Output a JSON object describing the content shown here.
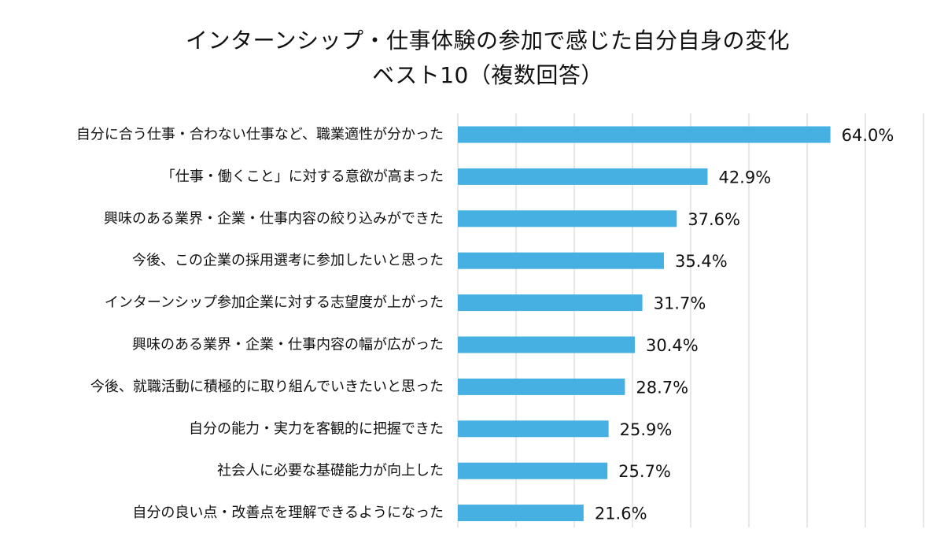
{
  "chart_data": {
    "type": "bar",
    "orientation": "horizontal",
    "title": "インターンシップ・仕事体験の参加で感じた自分自身の変化",
    "subtitle": "ベスト10（複数回答）",
    "categories": [
      "自分に合う仕事・合わない仕事など、職業適性が分かった",
      "「仕事・働くこと」に対する意欲が高まった",
      "興味のある業界・企業・仕事内容の絞り込みができた",
      "今後、この企業の採用選考に参加したいと思った",
      "インターンシップ参加企業に対する志望度が上がった",
      "興味のある業界・企業・仕事内容の幅が広がった",
      "今後、就職活動に積極的に取り組んでいきたいと思った",
      "自分の能力・実力を客観的に把握できた",
      "社会人に必要な基礎能力が向上した",
      "自分の良い点・改善点を理解できるようになった"
    ],
    "values": [
      64.0,
      42.9,
      37.6,
      35.4,
      31.7,
      30.4,
      28.7,
      25.9,
      25.7,
      21.6
    ],
    "value_labels": [
      "64.0%",
      "42.9%",
      "37.6%",
      "35.4%",
      "31.7%",
      "30.4%",
      "28.7%",
      "25.9%",
      "25.7%",
      "21.6%"
    ],
    "xlim": [
      0,
      80
    ],
    "grid": true,
    "bar_color": "#45b0e1",
    "grid_color": "#d9d9d9",
    "legend": "none"
  }
}
